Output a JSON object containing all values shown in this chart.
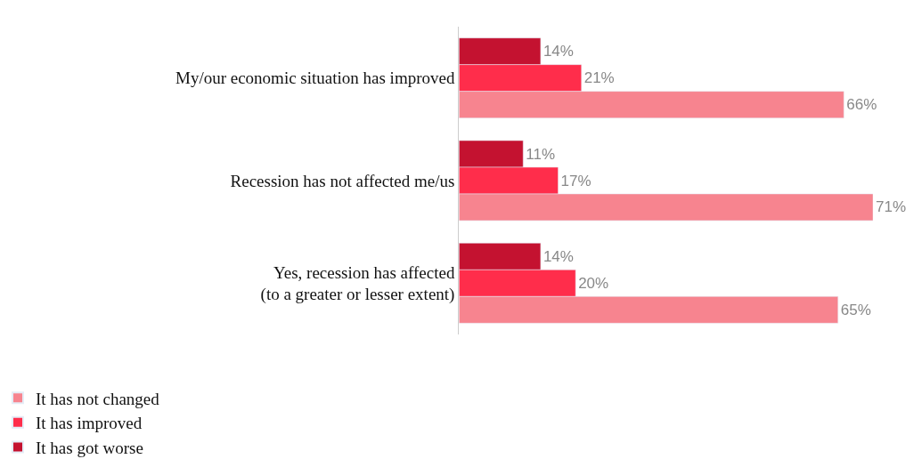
{
  "chart_data": {
    "type": "bar",
    "orientation": "horizontal",
    "categories": [
      "My/our economic situation has improved",
      "Recession has not affected me/us",
      "Yes, recession has affected\n(to a greater or lesser extent)"
    ],
    "series": [
      {
        "name": "It has not changed",
        "color": "#f7848f",
        "values": [
          66,
          71,
          65
        ],
        "value_labels": [
          "66%",
          "71%",
          "65%"
        ]
      },
      {
        "name": "It has improved",
        "color": "#ff2d4b",
        "values": [
          21,
          17,
          20
        ],
        "value_labels": [
          "21%",
          "17%",
          "20%"
        ]
      },
      {
        "name": "It has got worse",
        "color": "#c41230",
        "values": [
          14,
          11,
          14
        ],
        "value_labels": [
          "14%",
          "11%",
          "14%"
        ]
      }
    ],
    "legend": "bottom left"
  }
}
